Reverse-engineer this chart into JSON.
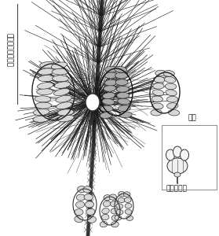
{
  "bg_color": "#ffffff",
  "text_color": "#111111",
  "label_left": "一年目のまつかさ",
  "label_right_top": "お花",
  "label_right_bottom": "花粉ふくろ",
  "fig_width": 2.79,
  "fig_height": 3.0,
  "dpi": 100,
  "needle_color": "#1a1a1a",
  "cone_dark": "#222222",
  "cone_mid": "#555555",
  "cone_light": "#cccccc",
  "branch_color": "#333333",
  "needle_lw": 0.45,
  "branch_lw": 2.5
}
